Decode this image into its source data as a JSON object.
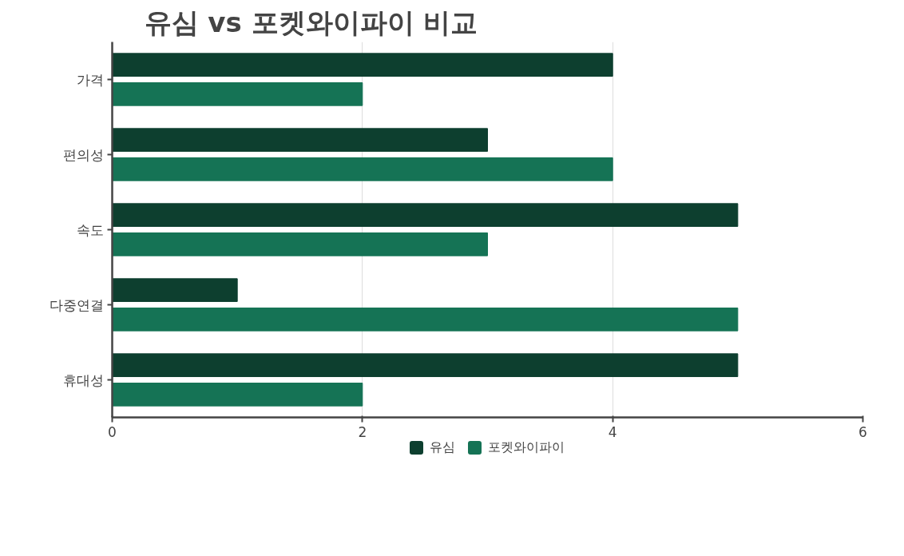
{
  "chart_data": {
    "type": "bar",
    "orientation": "horizontal",
    "title": "유심 vs 포켓와이파이 비교",
    "categories": [
      "가격",
      "편의성",
      "속도",
      "다중연결",
      "휴대성"
    ],
    "series": [
      {
        "name": "유심",
        "color": "#0d3f2f",
        "values": [
          4,
          3,
          5,
          1,
          5
        ]
      },
      {
        "name": "포켓와이파이",
        "color": "#157355",
        "values": [
          2,
          4,
          3,
          5,
          2
        ]
      }
    ],
    "xlim": [
      0,
      6
    ],
    "xticks": [
      0,
      2,
      4,
      6
    ],
    "grid": "x",
    "legend": "bottom"
  }
}
